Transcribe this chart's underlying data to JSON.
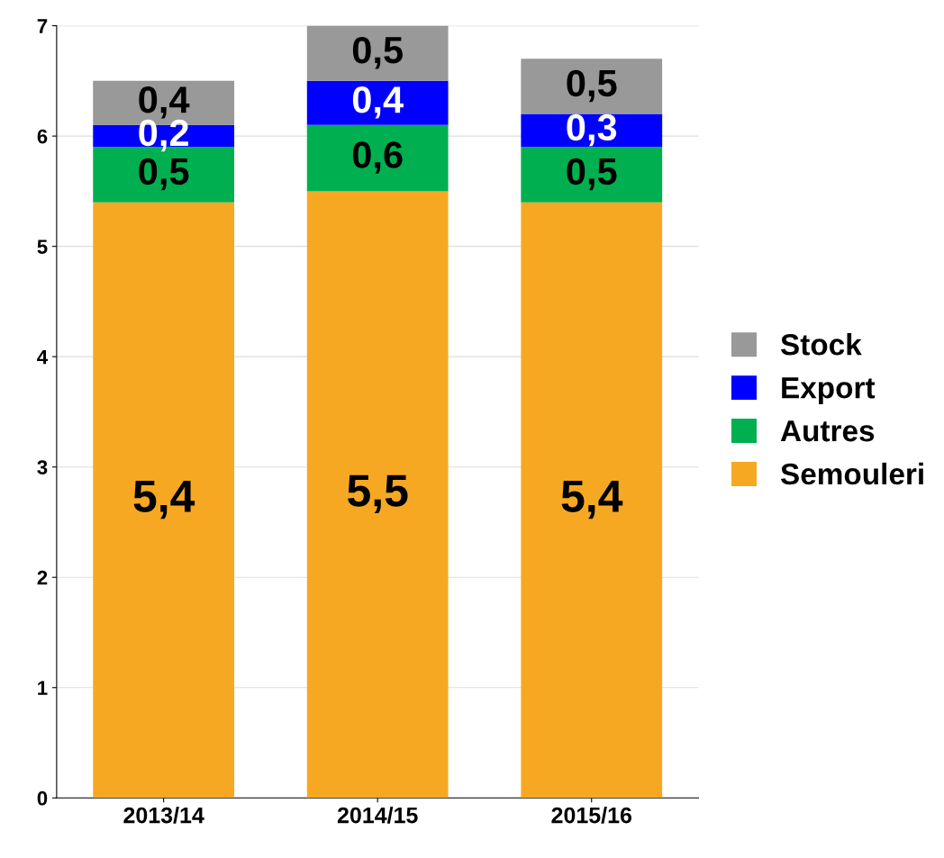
{
  "chart_data": {
    "type": "bar",
    "stacked": true,
    "categories": [
      "2013/14",
      "2014/15",
      "2015/16"
    ],
    "series": [
      {
        "name": "Semouleri",
        "color": "#f7a823",
        "values": [
          5.4,
          5.5,
          5.4
        ],
        "value_labels": [
          "5,4",
          "5,5",
          "5,4"
        ]
      },
      {
        "name": "Autres",
        "color": "#00b050",
        "values": [
          0.5,
          0.6,
          0.5
        ],
        "value_labels": [
          "0,5",
          "0,6",
          "0,5"
        ]
      },
      {
        "name": "Export",
        "color": "#0000ff",
        "values": [
          0.2,
          0.4,
          0.3
        ],
        "value_labels": [
          "0,2",
          "0,4",
          "0,3"
        ]
      },
      {
        "name": "Stock",
        "color": "#999999",
        "values": [
          0.4,
          0.5,
          0.5
        ],
        "value_labels": [
          "0,4",
          "0,5",
          "0,5"
        ]
      }
    ],
    "ylim": [
      0,
      7
    ],
    "yticks": [
      0,
      1,
      2,
      3,
      4,
      5,
      6,
      7
    ],
    "grid": "y",
    "legend": "right"
  }
}
